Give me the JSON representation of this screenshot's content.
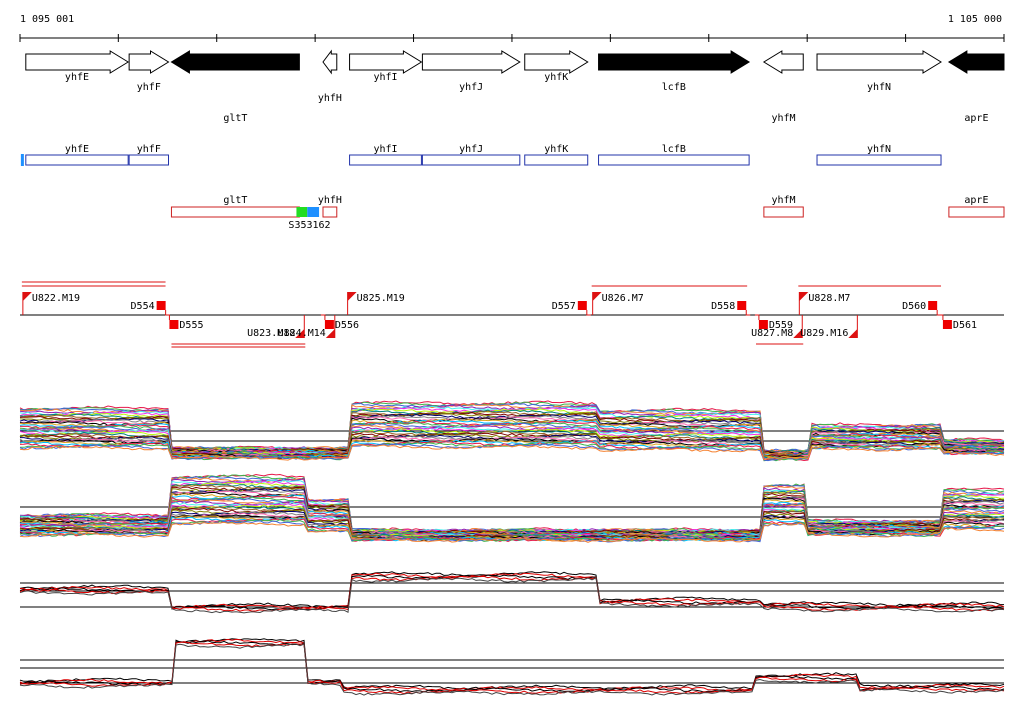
{
  "ruler": {
    "start_label": "1 095 001",
    "end_label": "1 105 000",
    "start": 1095001,
    "end": 1105000
  },
  "genes": [
    {
      "name": "yhfE",
      "start": 1095060,
      "end": 1096100,
      "strand": "+",
      "highlight": false
    },
    {
      "name": "yhfF",
      "start": 1096110,
      "end": 1096510,
      "strand": "+",
      "highlight": false
    },
    {
      "name": "gltT",
      "start": 1096540,
      "end": 1097840,
      "strand": "-",
      "highlight": true
    },
    {
      "name": "yhfH",
      "start": 1098080,
      "end": 1098220,
      "strand": "-",
      "highlight": false
    },
    {
      "name": "yhfI",
      "start": 1098350,
      "end": 1099080,
      "strand": "+",
      "highlight": false
    },
    {
      "name": "yhfJ",
      "start": 1099090,
      "end": 1100080,
      "strand": "+",
      "highlight": false
    },
    {
      "name": "yhfK",
      "start": 1100130,
      "end": 1100770,
      "strand": "+",
      "highlight": false
    },
    {
      "name": "lcfB",
      "start": 1100880,
      "end": 1102410,
      "strand": "+",
      "highlight": true
    },
    {
      "name": "yhfM",
      "start": 1102560,
      "end": 1102960,
      "strand": "-",
      "highlight": false
    },
    {
      "name": "yhfN",
      "start": 1103100,
      "end": 1104360,
      "strand": "+",
      "highlight": false
    },
    {
      "name": "aprE",
      "start": 1104440,
      "end": 1105000,
      "strand": "-",
      "highlight": true
    }
  ],
  "annotations_plus": [
    {
      "name": "yhfE",
      "start": 1095060,
      "end": 1096100
    },
    {
      "name": "yhfF",
      "start": 1096110,
      "end": 1096510
    },
    {
      "name": "yhfI",
      "start": 1098350,
      "end": 1099080
    },
    {
      "name": "yhfJ",
      "start": 1099090,
      "end": 1100080
    },
    {
      "name": "yhfK",
      "start": 1100130,
      "end": 1100770
    },
    {
      "name": "lcfB",
      "start": 1100880,
      "end": 1102410
    },
    {
      "name": "yhfN",
      "start": 1103100,
      "end": 1104360
    }
  ],
  "annotations_minus": [
    {
      "name": "gltT",
      "start": 1096540,
      "end": 1097840
    },
    {
      "name": "yhfH",
      "start": 1098080,
      "end": 1098220
    },
    {
      "name": "yhfM",
      "start": 1102560,
      "end": 1102960
    },
    {
      "name": "aprE",
      "start": 1104440,
      "end": 1105000
    }
  ],
  "sites": {
    "label": "S353162",
    "green_start": 1097810,
    "green_end": 1097920,
    "blue_start": 1097920,
    "blue_end": 1098040,
    "left_marker_pos": 1095010
  },
  "segments_plus": [
    {
      "name": "U822.M19",
      "start": 1095020,
      "end": 1096480,
      "has_line": true
    },
    {
      "name": "U825.M19",
      "start": 1098320,
      "end": 1100760,
      "has_line": false
    },
    {
      "name": "U826.M7",
      "start": 1100810,
      "end": 1102390,
      "has_line": true
    },
    {
      "name": "U828.M7",
      "start": 1102910,
      "end": 1104360,
      "has_line": true
    }
  ],
  "segments_minus": [
    {
      "name": "U823.M18",
      "start": 1096540,
      "end": 1097900,
      "has_line": true
    },
    {
      "name": "U824.M14",
      "start": 1097900,
      "end": 1098210,
      "has_line": false
    },
    {
      "name": "U827.M8",
      "start": 1102480,
      "end": 1102960,
      "has_line": true
    },
    {
      "name": "U829.M16",
      "start": 1102960,
      "end": 1103520,
      "has_line": false
    }
  ],
  "downshifts_plus": [
    {
      "name": "D554",
      "pos": 1096430
    },
    {
      "name": "D557",
      "pos": 1100710
    },
    {
      "name": "D558",
      "pos": 1102330
    },
    {
      "name": "D560",
      "pos": 1104270
    }
  ],
  "downshifts_minus": [
    {
      "name": "D555",
      "pos": 1096560
    },
    {
      "name": "D556",
      "pos": 1098140
    },
    {
      "name": "D559",
      "pos": 1102550
    },
    {
      "name": "D561",
      "pos": 1104420
    }
  ]
}
